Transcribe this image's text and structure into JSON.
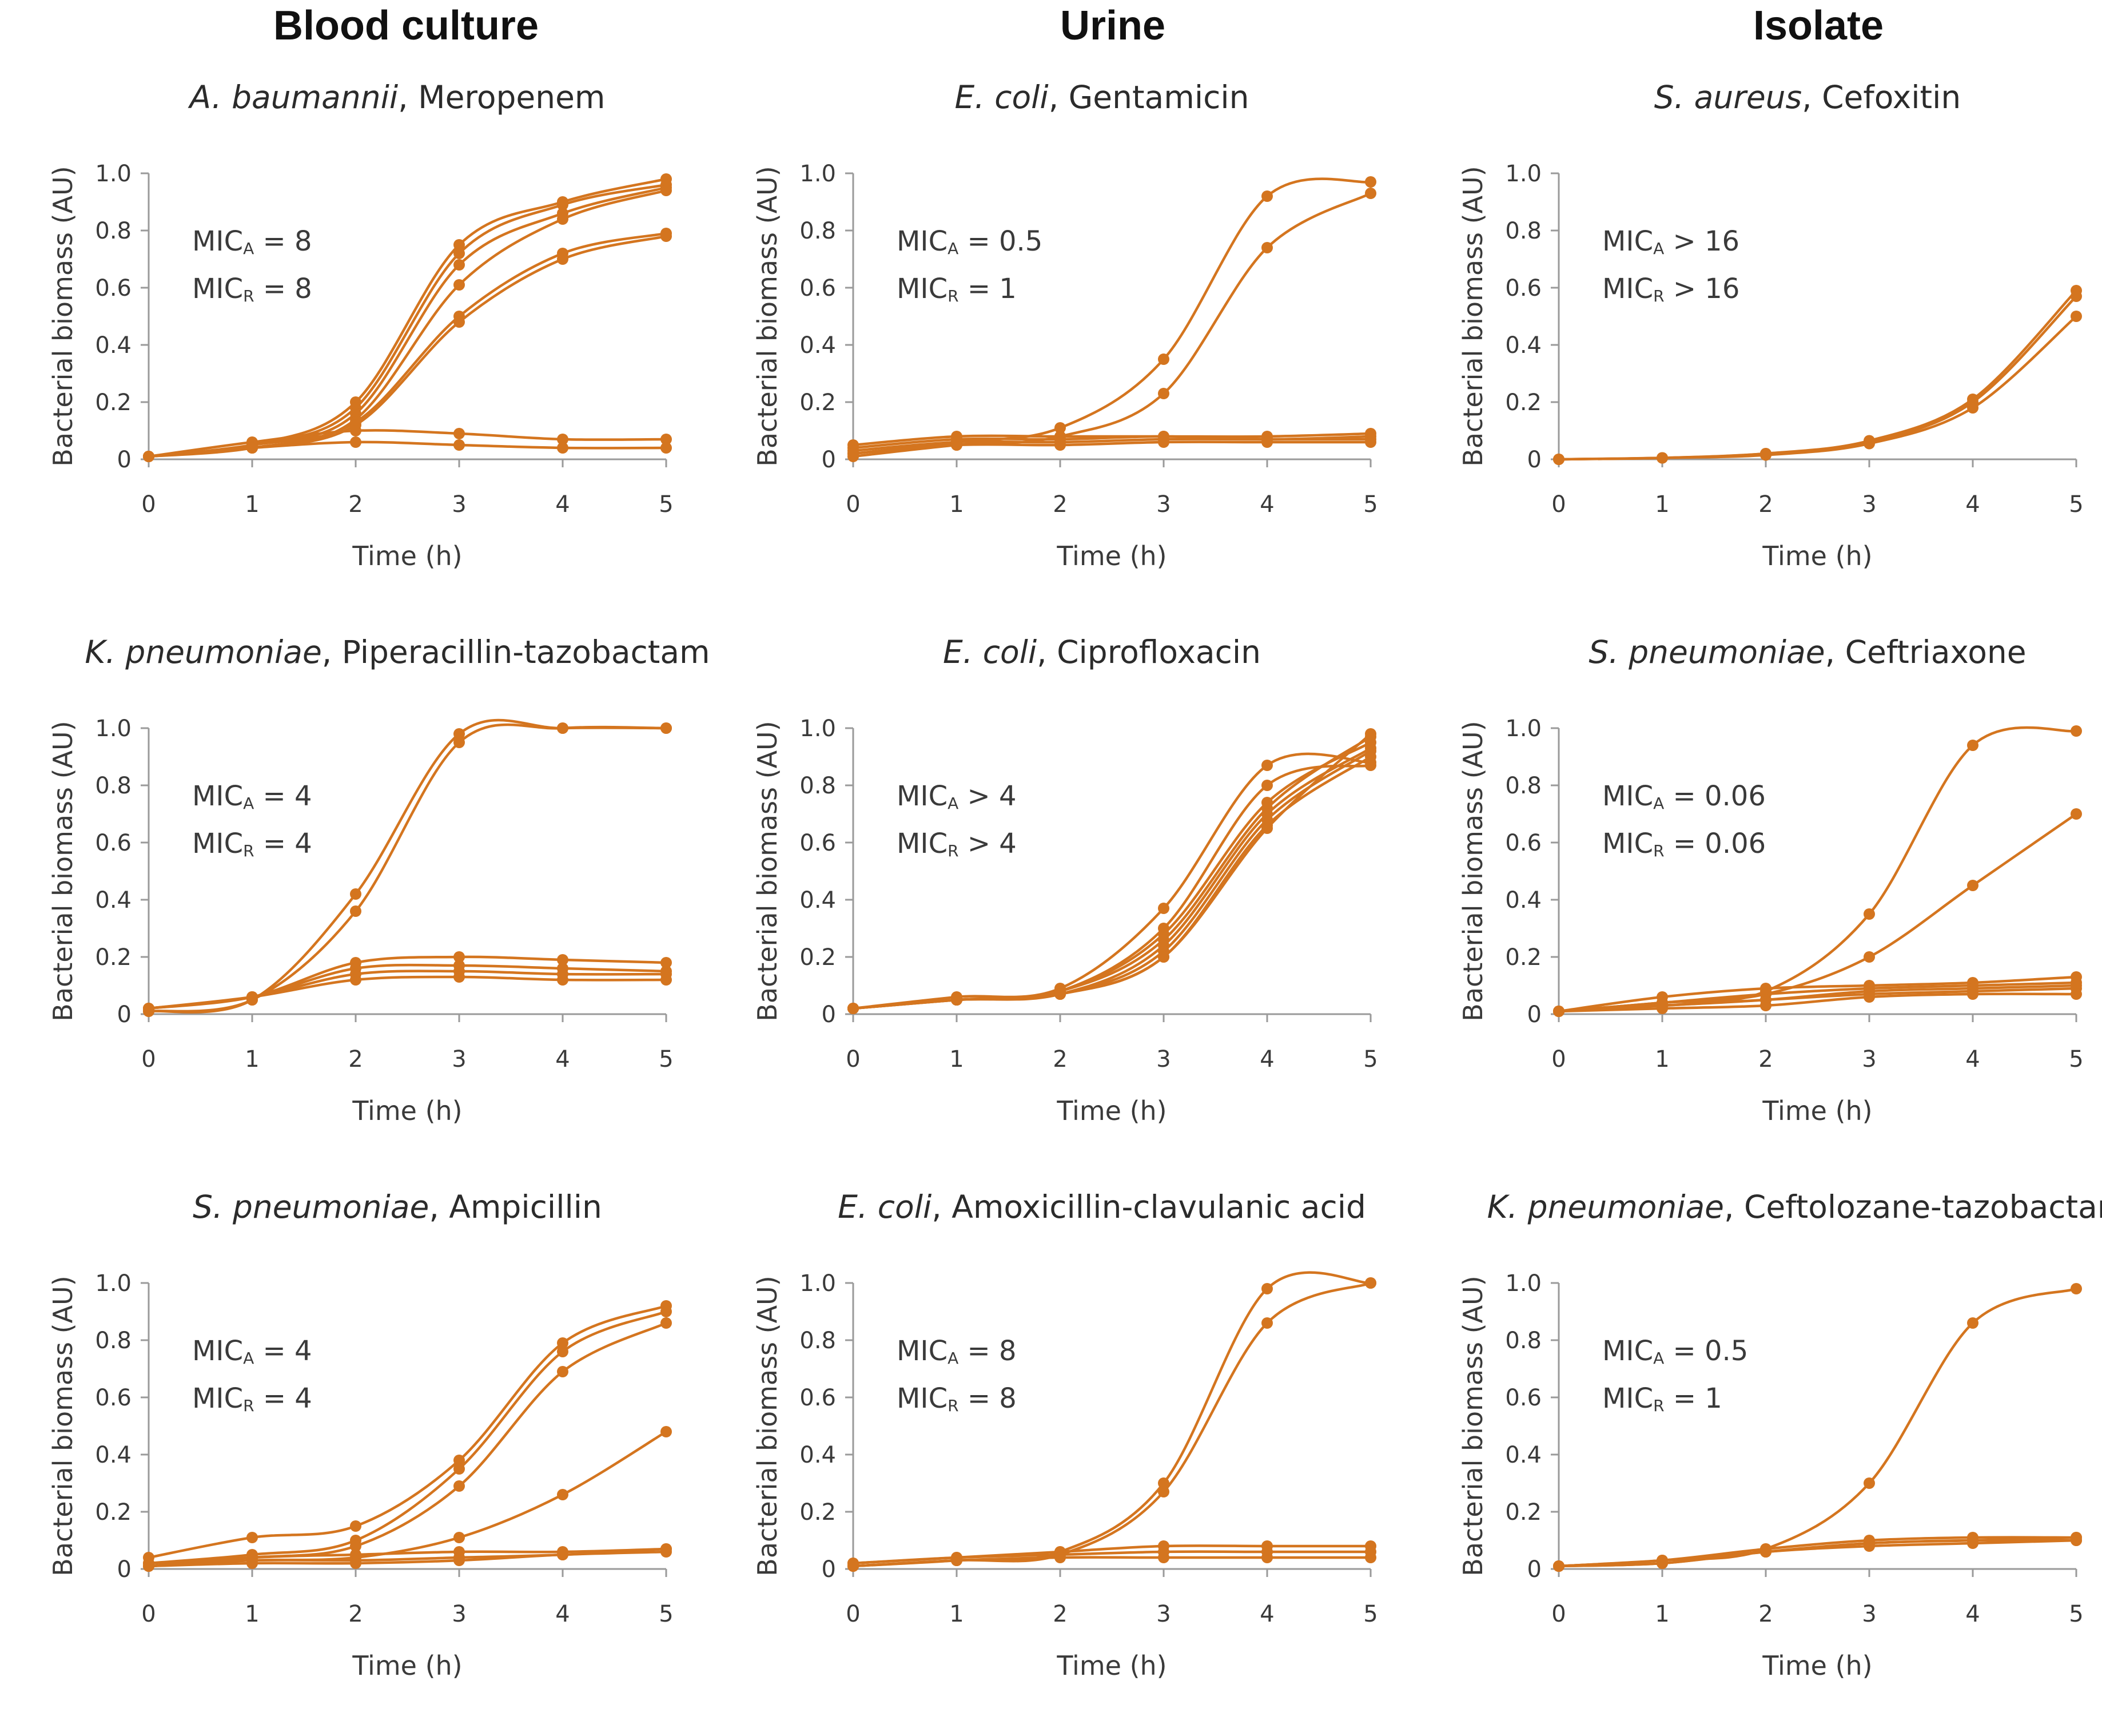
{
  "columns": [
    "Blood culture",
    "Urine",
    "Isolate"
  ],
  "axis": {
    "ylabel": "Bacterial biomass (AU)",
    "xlabel": "Time (h)"
  },
  "style": {
    "line_color": "#d4751f"
  },
  "chart_data": [
    {
      "type": "line",
      "column": "Blood culture",
      "organism": "A. baumannii",
      "drug": ", Meropenem",
      "mic": {
        "a_label": "MIC",
        "a_sub": "A",
        "a_rel": "=",
        "a_value": "8",
        "r_label": "MIC",
        "r_sub": "R",
        "r_rel": "=",
        "r_value": "8"
      },
      "xlabel": "Time (h)",
      "ylabel": "Bacterial biomass (AU)",
      "x": [
        0,
        1,
        2,
        3,
        4,
        5
      ],
      "x_ticks": [
        "0",
        "1",
        "2",
        "3",
        "4",
        "5"
      ],
      "y_ticks": [
        "0",
        "0.2",
        "0.4",
        "0.6",
        "0.8",
        "1.0"
      ],
      "xlim": [
        0,
        5
      ],
      "ylim": [
        0,
        1.0
      ],
      "series": [
        {
          "values": [
            0.01,
            0.05,
            0.2,
            0.75,
            0.9,
            0.98
          ]
        },
        {
          "values": [
            0.01,
            0.05,
            0.18,
            0.72,
            0.89,
            0.96
          ]
        },
        {
          "values": [
            0.01,
            0.05,
            0.16,
            0.68,
            0.86,
            0.95
          ]
        },
        {
          "values": [
            0.01,
            0.04,
            0.14,
            0.61,
            0.84,
            0.94
          ]
        },
        {
          "values": [
            0.01,
            0.05,
            0.13,
            0.5,
            0.72,
            0.79
          ]
        },
        {
          "values": [
            0.01,
            0.04,
            0.12,
            0.48,
            0.7,
            0.78
          ]
        },
        {
          "values": [
            0.01,
            0.06,
            0.1,
            0.09,
            0.07,
            0.07
          ]
        },
        {
          "values": [
            0.01,
            0.04,
            0.06,
            0.05,
            0.04,
            0.04
          ]
        }
      ]
    },
    {
      "type": "line",
      "column": "Urine",
      "organism": "E. coli",
      "drug": ", Gentamicin",
      "mic": {
        "a_label": "MIC",
        "a_sub": "A",
        "a_rel": "=",
        "a_value": "0.5",
        "r_label": "MIC",
        "r_sub": "R",
        "r_rel": "=",
        "r_value": "1"
      },
      "xlabel": "Time (h)",
      "ylabel": "Bacterial biomass (AU)",
      "x": [
        0,
        1,
        2,
        3,
        4,
        5
      ],
      "x_ticks": [
        "0",
        "1",
        "2",
        "3",
        "4",
        "5"
      ],
      "y_ticks": [
        "0",
        "0.2",
        "0.4",
        "0.6",
        "0.8",
        "1.0"
      ],
      "xlim": [
        0,
        5
      ],
      "ylim": [
        0,
        1.0
      ],
      "series": [
        {
          "values": [
            0.02,
            0.06,
            0.11,
            0.35,
            0.92,
            0.97
          ]
        },
        {
          "values": [
            0.01,
            0.05,
            0.08,
            0.23,
            0.74,
            0.93
          ]
        },
        {
          "values": [
            0.05,
            0.08,
            0.08,
            0.08,
            0.08,
            0.09
          ]
        },
        {
          "values": [
            0.04,
            0.07,
            0.07,
            0.08,
            0.07,
            0.08
          ]
        },
        {
          "values": [
            0.03,
            0.06,
            0.06,
            0.07,
            0.07,
            0.07
          ]
        },
        {
          "values": [
            0.02,
            0.05,
            0.05,
            0.06,
            0.06,
            0.06
          ]
        }
      ]
    },
    {
      "type": "line",
      "column": "Isolate",
      "organism": "S. aureus",
      "drug": ", Cefoxitin",
      "mic": {
        "a_label": "MIC",
        "a_sub": "A",
        "a_rel": ">",
        "a_value": "16",
        "r_label": "MIC",
        "r_sub": "R",
        "r_rel": ">",
        "r_value": "16"
      },
      "xlabel": "Time (h)",
      "ylabel": "Bacterial biomass (AU)",
      "x": [
        0,
        1,
        2,
        3,
        4,
        5
      ],
      "x_ticks": [
        "0",
        "1",
        "2",
        "3",
        "4",
        "5"
      ],
      "y_ticks": [
        "0",
        "0.2",
        "0.4",
        "0.6",
        "0.8",
        "1.0"
      ],
      "xlim": [
        0,
        5
      ],
      "ylim": [
        0,
        1.0
      ],
      "series": [
        {
          "values": [
            0.0,
            0.005,
            0.02,
            0.065,
            0.21,
            0.59
          ]
        },
        {
          "values": [
            0.0,
            0.005,
            0.02,
            0.06,
            0.2,
            0.57
          ]
        },
        {
          "values": [
            0.0,
            0.005,
            0.015,
            0.055,
            0.18,
            0.5
          ]
        }
      ]
    },
    {
      "type": "line",
      "column": "Blood culture",
      "organism": "K. pneumoniae",
      "drug": ", Piperacillin-tazobactam",
      "mic": {
        "a_label": "MIC",
        "a_sub": "A",
        "a_rel": "=",
        "a_value": "4",
        "r_label": "MIC",
        "r_sub": "R",
        "r_rel": "=",
        "r_value": "4"
      },
      "xlabel": "Time (h)",
      "ylabel": "Bacterial biomass (AU)",
      "x": [
        0,
        1,
        2,
        3,
        4,
        5
      ],
      "x_ticks": [
        "0",
        "1",
        "2",
        "3",
        "4",
        "5"
      ],
      "y_ticks": [
        "0",
        "0.2",
        "0.4",
        "0.6",
        "0.8",
        "1.0"
      ],
      "xlim": [
        0,
        5
      ],
      "ylim": [
        0,
        1.0
      ],
      "series": [
        {
          "values": [
            0.01,
            0.05,
            0.42,
            0.98,
            1.0,
            1.0
          ]
        },
        {
          "values": [
            0.01,
            0.05,
            0.36,
            0.95,
            1.0,
            1.0
          ]
        },
        {
          "values": [
            0.02,
            0.06,
            0.18,
            0.2,
            0.19,
            0.18
          ]
        },
        {
          "values": [
            0.02,
            0.06,
            0.16,
            0.17,
            0.16,
            0.15
          ]
        },
        {
          "values": [
            0.02,
            0.06,
            0.14,
            0.15,
            0.14,
            0.14
          ]
        },
        {
          "values": [
            0.02,
            0.06,
            0.12,
            0.13,
            0.12,
            0.12
          ]
        }
      ]
    },
    {
      "type": "line",
      "column": "Urine",
      "organism": "E. coli",
      "drug": ", Ciprofloxacin",
      "mic": {
        "a_label": "MIC",
        "a_sub": "A",
        "a_rel": ">",
        "a_value": "4",
        "r_label": "MIC",
        "r_sub": "R",
        "r_rel": ">",
        "r_value": "4"
      },
      "xlabel": "Time (h)",
      "ylabel": "Bacterial biomass (AU)",
      "x": [
        0,
        1,
        2,
        3,
        4,
        5
      ],
      "x_ticks": [
        "0",
        "1",
        "2",
        "3",
        "4",
        "5"
      ],
      "y_ticks": [
        "0",
        "0.2",
        "0.4",
        "0.6",
        "0.8",
        "1.0"
      ],
      "xlim": [
        0,
        5
      ],
      "ylim": [
        0,
        1.0
      ],
      "series": [
        {
          "values": [
            0.02,
            0.06,
            0.09,
            0.37,
            0.87,
            0.88
          ]
        },
        {
          "values": [
            0.02,
            0.05,
            0.08,
            0.3,
            0.8,
            0.87
          ]
        },
        {
          "values": [
            0.02,
            0.05,
            0.08,
            0.28,
            0.74,
            0.95
          ]
        },
        {
          "values": [
            0.02,
            0.05,
            0.08,
            0.26,
            0.72,
            0.97
          ]
        },
        {
          "values": [
            0.02,
            0.05,
            0.07,
            0.24,
            0.7,
            0.93
          ]
        },
        {
          "values": [
            0.02,
            0.05,
            0.07,
            0.22,
            0.68,
            0.92
          ]
        },
        {
          "values": [
            0.02,
            0.05,
            0.07,
            0.2,
            0.66,
            0.9
          ]
        },
        {
          "values": [
            0.02,
            0.05,
            0.07,
            0.2,
            0.65,
            0.98
          ]
        }
      ]
    },
    {
      "type": "line",
      "column": "Isolate",
      "organism": "S. pneumoniae",
      "drug": ", Ceftriaxone",
      "mic": {
        "a_label": "MIC",
        "a_sub": "A",
        "a_rel": "=",
        "a_value": "0.06",
        "r_label": "MIC",
        "r_sub": "R",
        "r_rel": "=",
        "r_value": "0.06"
      },
      "xlabel": "Time (h)",
      "ylabel": "Bacterial biomass (AU)",
      "x": [
        0,
        1,
        2,
        3,
        4,
        5
      ],
      "x_ticks": [
        "0",
        "1",
        "2",
        "3",
        "4",
        "5"
      ],
      "y_ticks": [
        "0",
        "0.2",
        "0.4",
        "0.6",
        "0.8",
        "1.0"
      ],
      "xlim": [
        0,
        5
      ],
      "ylim": [
        0,
        1.0
      ],
      "series": [
        {
          "values": [
            0.01,
            0.04,
            0.08,
            0.35,
            0.94,
            0.99
          ]
        },
        {
          "values": [
            0.01,
            0.04,
            0.07,
            0.2,
            0.45,
            0.7
          ]
        },
        {
          "values": [
            0.01,
            0.06,
            0.09,
            0.1,
            0.11,
            0.13
          ]
        },
        {
          "values": [
            0.01,
            0.04,
            0.07,
            0.09,
            0.1,
            0.11
          ]
        },
        {
          "values": [
            0.01,
            0.03,
            0.05,
            0.08,
            0.09,
            0.1
          ]
        },
        {
          "values": [
            0.01,
            0.03,
            0.05,
            0.07,
            0.08,
            0.09
          ]
        },
        {
          "values": [
            0.01,
            0.02,
            0.03,
            0.06,
            0.07,
            0.07
          ]
        }
      ]
    },
    {
      "type": "line",
      "column": "Blood culture",
      "organism": "S. pneumoniae",
      "drug": ", Ampicillin",
      "mic": {
        "a_label": "MIC",
        "a_sub": "A",
        "a_rel": "=",
        "a_value": "4",
        "r_label": "MIC",
        "r_sub": "R",
        "r_rel": "=",
        "r_value": "4"
      },
      "xlabel": "Time (h)",
      "ylabel": "Bacterial biomass (AU)",
      "x": [
        0,
        1,
        2,
        3,
        4,
        5
      ],
      "x_ticks": [
        "0",
        "1",
        "2",
        "3",
        "4",
        "5"
      ],
      "y_ticks": [
        "0",
        "0.2",
        "0.4",
        "0.6",
        "0.8",
        "1.0"
      ],
      "xlim": [
        0,
        5
      ],
      "ylim": [
        0,
        1.0
      ],
      "series": [
        {
          "values": [
            0.04,
            0.11,
            0.15,
            0.38,
            0.79,
            0.92
          ]
        },
        {
          "values": [
            0.02,
            0.05,
            0.1,
            0.35,
            0.76,
            0.9
          ]
        },
        {
          "values": [
            0.02,
            0.04,
            0.08,
            0.29,
            0.69,
            0.86
          ]
        },
        {
          "values": [
            0.01,
            0.03,
            0.04,
            0.11,
            0.26,
            0.48
          ]
        },
        {
          "values": [
            0.01,
            0.04,
            0.05,
            0.06,
            0.06,
            0.07
          ]
        },
        {
          "values": [
            0.01,
            0.03,
            0.03,
            0.04,
            0.05,
            0.07
          ]
        },
        {
          "values": [
            0.01,
            0.02,
            0.02,
            0.03,
            0.05,
            0.06
          ]
        }
      ]
    },
    {
      "type": "line",
      "column": "Urine",
      "organism": "E. coli",
      "drug": ", Amoxicillin-clavulanic acid",
      "mic": {
        "a_label": "MIC",
        "a_sub": "A",
        "a_rel": "=",
        "a_value": "8",
        "r_label": "MIC",
        "r_sub": "R",
        "r_rel": "=",
        "r_value": "8"
      },
      "xlabel": "Time (h)",
      "ylabel": "Bacterial biomass (AU)",
      "x": [
        0,
        1,
        2,
        3,
        4,
        5
      ],
      "x_ticks": [
        "0",
        "1",
        "2",
        "3",
        "4",
        "5"
      ],
      "y_ticks": [
        "0",
        "0.2",
        "0.4",
        "0.6",
        "0.8",
        "1.0"
      ],
      "xlim": [
        0,
        5
      ],
      "ylim": [
        0,
        1.0
      ],
      "series": [
        {
          "values": [
            0.01,
            0.03,
            0.06,
            0.3,
            0.98,
            1.0
          ]
        },
        {
          "values": [
            0.01,
            0.03,
            0.05,
            0.27,
            0.86,
            1.0
          ]
        },
        {
          "values": [
            0.02,
            0.04,
            0.06,
            0.08,
            0.08,
            0.08
          ]
        },
        {
          "values": [
            0.02,
            0.04,
            0.05,
            0.06,
            0.06,
            0.06
          ]
        },
        {
          "values": [
            0.01,
            0.03,
            0.04,
            0.04,
            0.04,
            0.04
          ]
        }
      ]
    },
    {
      "type": "line",
      "column": "Isolate",
      "organism": "K. pneumoniae",
      "drug": ", Ceftolozane-tazobactam",
      "mic": {
        "a_label": "MIC",
        "a_sub": "A",
        "a_rel": "=",
        "a_value": "0.5",
        "r_label": "MIC",
        "r_sub": "R",
        "r_rel": "=",
        "r_value": "1"
      },
      "xlabel": "Time (h)",
      "ylabel": "Bacterial biomass (AU)",
      "x": [
        0,
        1,
        2,
        3,
        4,
        5
      ],
      "x_ticks": [
        "0",
        "1",
        "2",
        "3",
        "4",
        "5"
      ],
      "y_ticks": [
        "0",
        "0.2",
        "0.4",
        "0.6",
        "0.8",
        "1.0"
      ],
      "xlim": [
        0,
        5
      ],
      "ylim": [
        0,
        1.0
      ],
      "series": [
        {
          "values": [
            0.01,
            0.03,
            0.07,
            0.3,
            0.86,
            0.98
          ]
        },
        {
          "values": [
            0.01,
            0.03,
            0.07,
            0.1,
            0.11,
            0.11
          ]
        },
        {
          "values": [
            0.01,
            0.03,
            0.06,
            0.09,
            0.1,
            0.11
          ]
        },
        {
          "values": [
            0.01,
            0.02,
            0.06,
            0.09,
            0.1,
            0.1
          ]
        },
        {
          "values": [
            0.01,
            0.02,
            0.06,
            0.08,
            0.09,
            0.1
          ]
        }
      ]
    }
  ]
}
